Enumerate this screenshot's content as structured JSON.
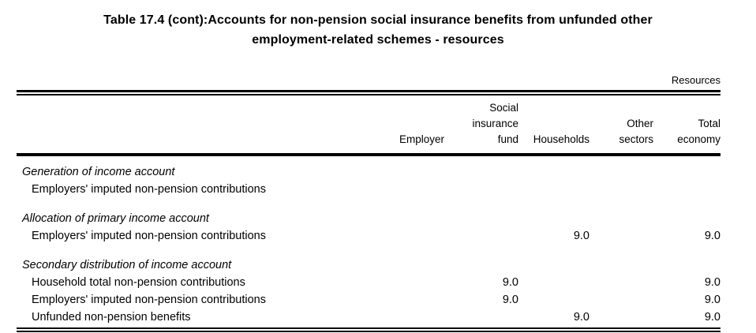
{
  "title": {
    "line1": "Table 17.4 (cont):Accounts for non-pension social insurance benefits from unfunded other",
    "line2": "employment-related schemes - resources"
  },
  "table": {
    "spanner": "Resources",
    "column_headers": {
      "employer": "Employer",
      "social_insurance_fund": "Social\ninsurance\nfund",
      "households": "Households",
      "other_sectors": "Other\nsectors",
      "total_economy": "Total\neconomy"
    },
    "sections": [
      {
        "heading": "Generation of income account",
        "rows": [
          {
            "label": "Employers' imputed non-pension contributions",
            "values": [
              "",
              "",
              "",
              "",
              ""
            ]
          }
        ]
      },
      {
        "heading": "Allocation of primary income account",
        "rows": [
          {
            "label": "Employers' imputed non-pension contributions",
            "values": [
              "",
              "",
              "9.0",
              "",
              "9.0"
            ]
          }
        ]
      },
      {
        "heading": "Secondary distribution of income account",
        "rows": [
          {
            "label": "Household total non-pension contributions",
            "values": [
              "",
              "9.0",
              "",
              "",
              "9.0"
            ]
          },
          {
            "label": "Employers' imputed non-pension contributions",
            "values": [
              "",
              "9.0",
              "",
              "",
              "9.0"
            ]
          },
          {
            "label": "Unfunded non-pension benefits",
            "values": [
              "",
              "",
              "9.0",
              "",
              "9.0"
            ]
          }
        ]
      }
    ]
  }
}
